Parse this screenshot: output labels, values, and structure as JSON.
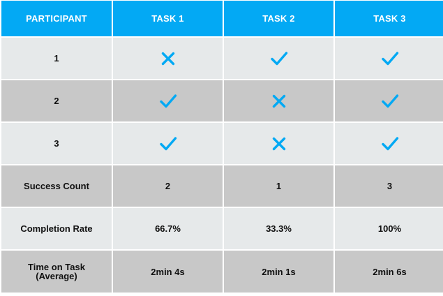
{
  "colors": {
    "header_bg": "#03a9f4",
    "header_text": "#ffffff",
    "row_light": "#e6e9ea",
    "row_dark": "#c8c8c8",
    "icon": "#03a9f4"
  },
  "header": [
    "PARTICIPANT",
    "TASK 1",
    "TASK 2",
    "TASK 3"
  ],
  "participants": [
    {
      "label": "1",
      "results": [
        "x-icon",
        "check-icon",
        "check-icon"
      ]
    },
    {
      "label": "2",
      "results": [
        "check-icon",
        "x-icon",
        "check-icon"
      ]
    },
    {
      "label": "3",
      "results": [
        "check-icon",
        "x-icon",
        "check-icon"
      ]
    }
  ],
  "summary": [
    {
      "label": "Success Count",
      "values": [
        "2",
        "1",
        "3"
      ]
    },
    {
      "label": "Completion Rate",
      "values": [
        "66.7%",
        "33.3%",
        "100%"
      ]
    },
    {
      "label_lines": [
        "Time on Task",
        "(Average)"
      ],
      "values": [
        "2min 4s",
        "2min 1s",
        "2min 6s"
      ]
    }
  ]
}
